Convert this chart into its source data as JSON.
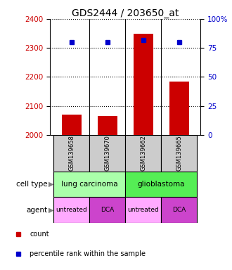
{
  "title": "GDS2444 / 203650_at",
  "samples": [
    "GSM139658",
    "GSM139670",
    "GSM139662",
    "GSM139665"
  ],
  "bar_values": [
    2070,
    2065,
    2350,
    2185
  ],
  "bar_bottom": 2000,
  "percentile_values": [
    80,
    80,
    82,
    80
  ],
  "ylim_left": [
    2000,
    2400
  ],
  "ylim_right": [
    0,
    100
  ],
  "yticks_left": [
    2000,
    2100,
    2200,
    2300,
    2400
  ],
  "yticks_right": [
    0,
    25,
    50,
    75,
    100
  ],
  "ytick_labels_right": [
    "0",
    "25",
    "50",
    "75",
    "100%"
  ],
  "bar_color": "#cc0000",
  "dot_color": "#0000cc",
  "cell_type_color_lc": "#aaffaa",
  "cell_type_color_gb": "#55ee55",
  "agent_labels": [
    "untreated",
    "DCA",
    "untreated",
    "DCA"
  ],
  "agent_color_untreated": "#ffaaff",
  "agent_color_dca": "#cc44cc",
  "sample_box_color": "#cccccc",
  "legend_count_color": "#cc0000",
  "legend_pct_color": "#0000cc",
  "title_fontsize": 10,
  "tick_fontsize": 7.5,
  "bar_width": 0.55
}
